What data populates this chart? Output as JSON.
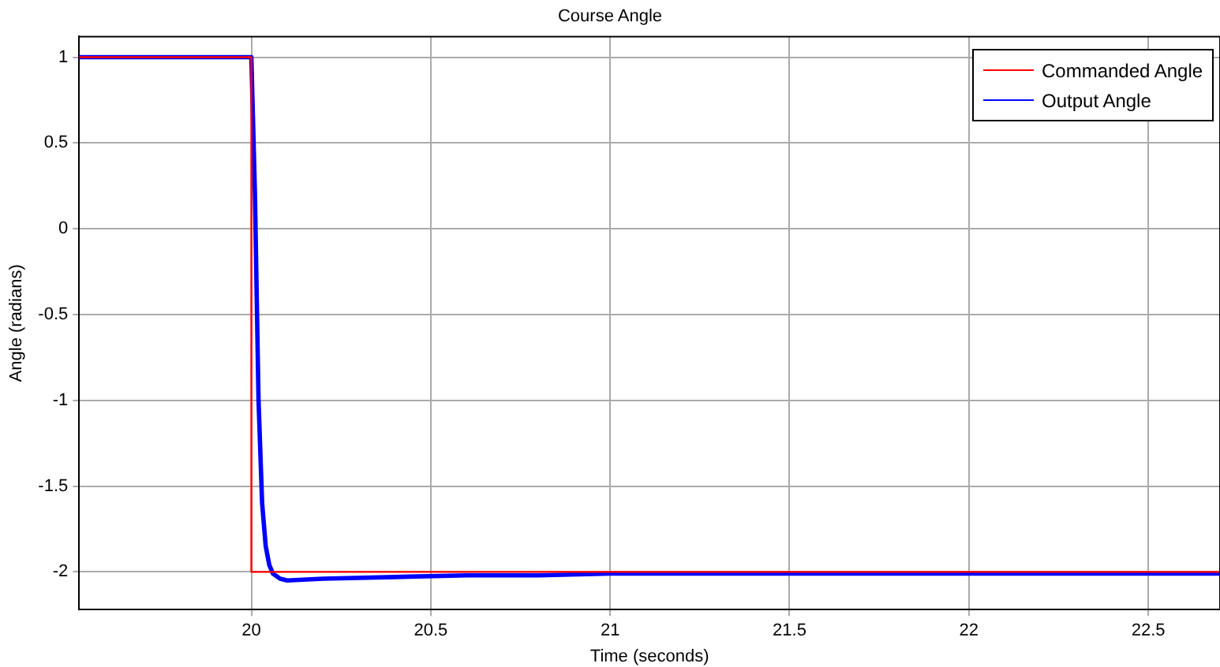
{
  "chart_data": {
    "type": "line",
    "title": "Course Angle",
    "xlabel": "Time (seconds)",
    "ylabel": "Angle (radians)",
    "xlim": [
      19.52,
      22.7
    ],
    "xticks": [
      20,
      20.5,
      21,
      21.5,
      22,
      22.5
    ],
    "ylim": [
      -2.22,
      1.12
    ],
    "yticks": [
      1,
      0.5,
      0,
      -0.5,
      -1,
      -1.5,
      -2
    ],
    "grid": true,
    "legend": "top right",
    "marker": "none",
    "line_style": "solid",
    "series": [
      {
        "name": "Commanded Angle",
        "color": "#ff0000",
        "x": [
          19.52,
          20,
          20,
          22.7
        ],
        "values": [
          1,
          1,
          -2,
          -2
        ]
      },
      {
        "name": "Output Angle",
        "color": "#0000ff",
        "x": [
          19.52,
          20,
          20.01,
          20.02,
          20.03,
          20.04,
          20.05,
          20.06,
          20.08,
          20.1,
          20.2,
          20.4,
          20.6,
          20.8,
          21,
          21.5,
          22,
          22.7
        ],
        "values": [
          1,
          1,
          0.2,
          -1.0,
          -1.6,
          -1.85,
          -1.96,
          -2.01,
          -2.04,
          -2.05,
          -2.04,
          -2.03,
          -2.02,
          -2.02,
          -2.01,
          -2.01,
          -2.01,
          -2.01
        ]
      }
    ]
  }
}
